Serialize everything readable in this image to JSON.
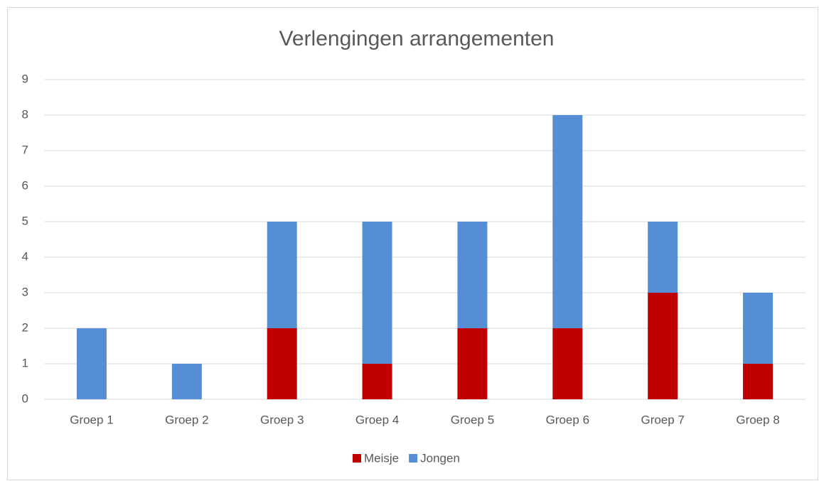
{
  "chart_data": {
    "type": "stacked_bar",
    "title": "Verlengingen arrangementen",
    "categories": [
      "Groep 1",
      "Groep 2",
      "Groep 3",
      "Groep 4",
      "Groep 5",
      "Groep 6",
      "Groep 7",
      "Groep 8"
    ],
    "series": [
      {
        "name": "Meisje",
        "color": "#c00000",
        "values": [
          0,
          0,
          2,
          1,
          2,
          2,
          3,
          1
        ]
      },
      {
        "name": "Jongen",
        "color": "#558ed5",
        "values": [
          2,
          1,
          3,
          4,
          3,
          6,
          2,
          2
        ]
      }
    ],
    "ylim": [
      0,
      9
    ],
    "yticks": [
      0,
      1,
      2,
      3,
      4,
      5,
      6,
      7,
      8,
      9
    ],
    "grid": true,
    "legend": "bottom"
  }
}
